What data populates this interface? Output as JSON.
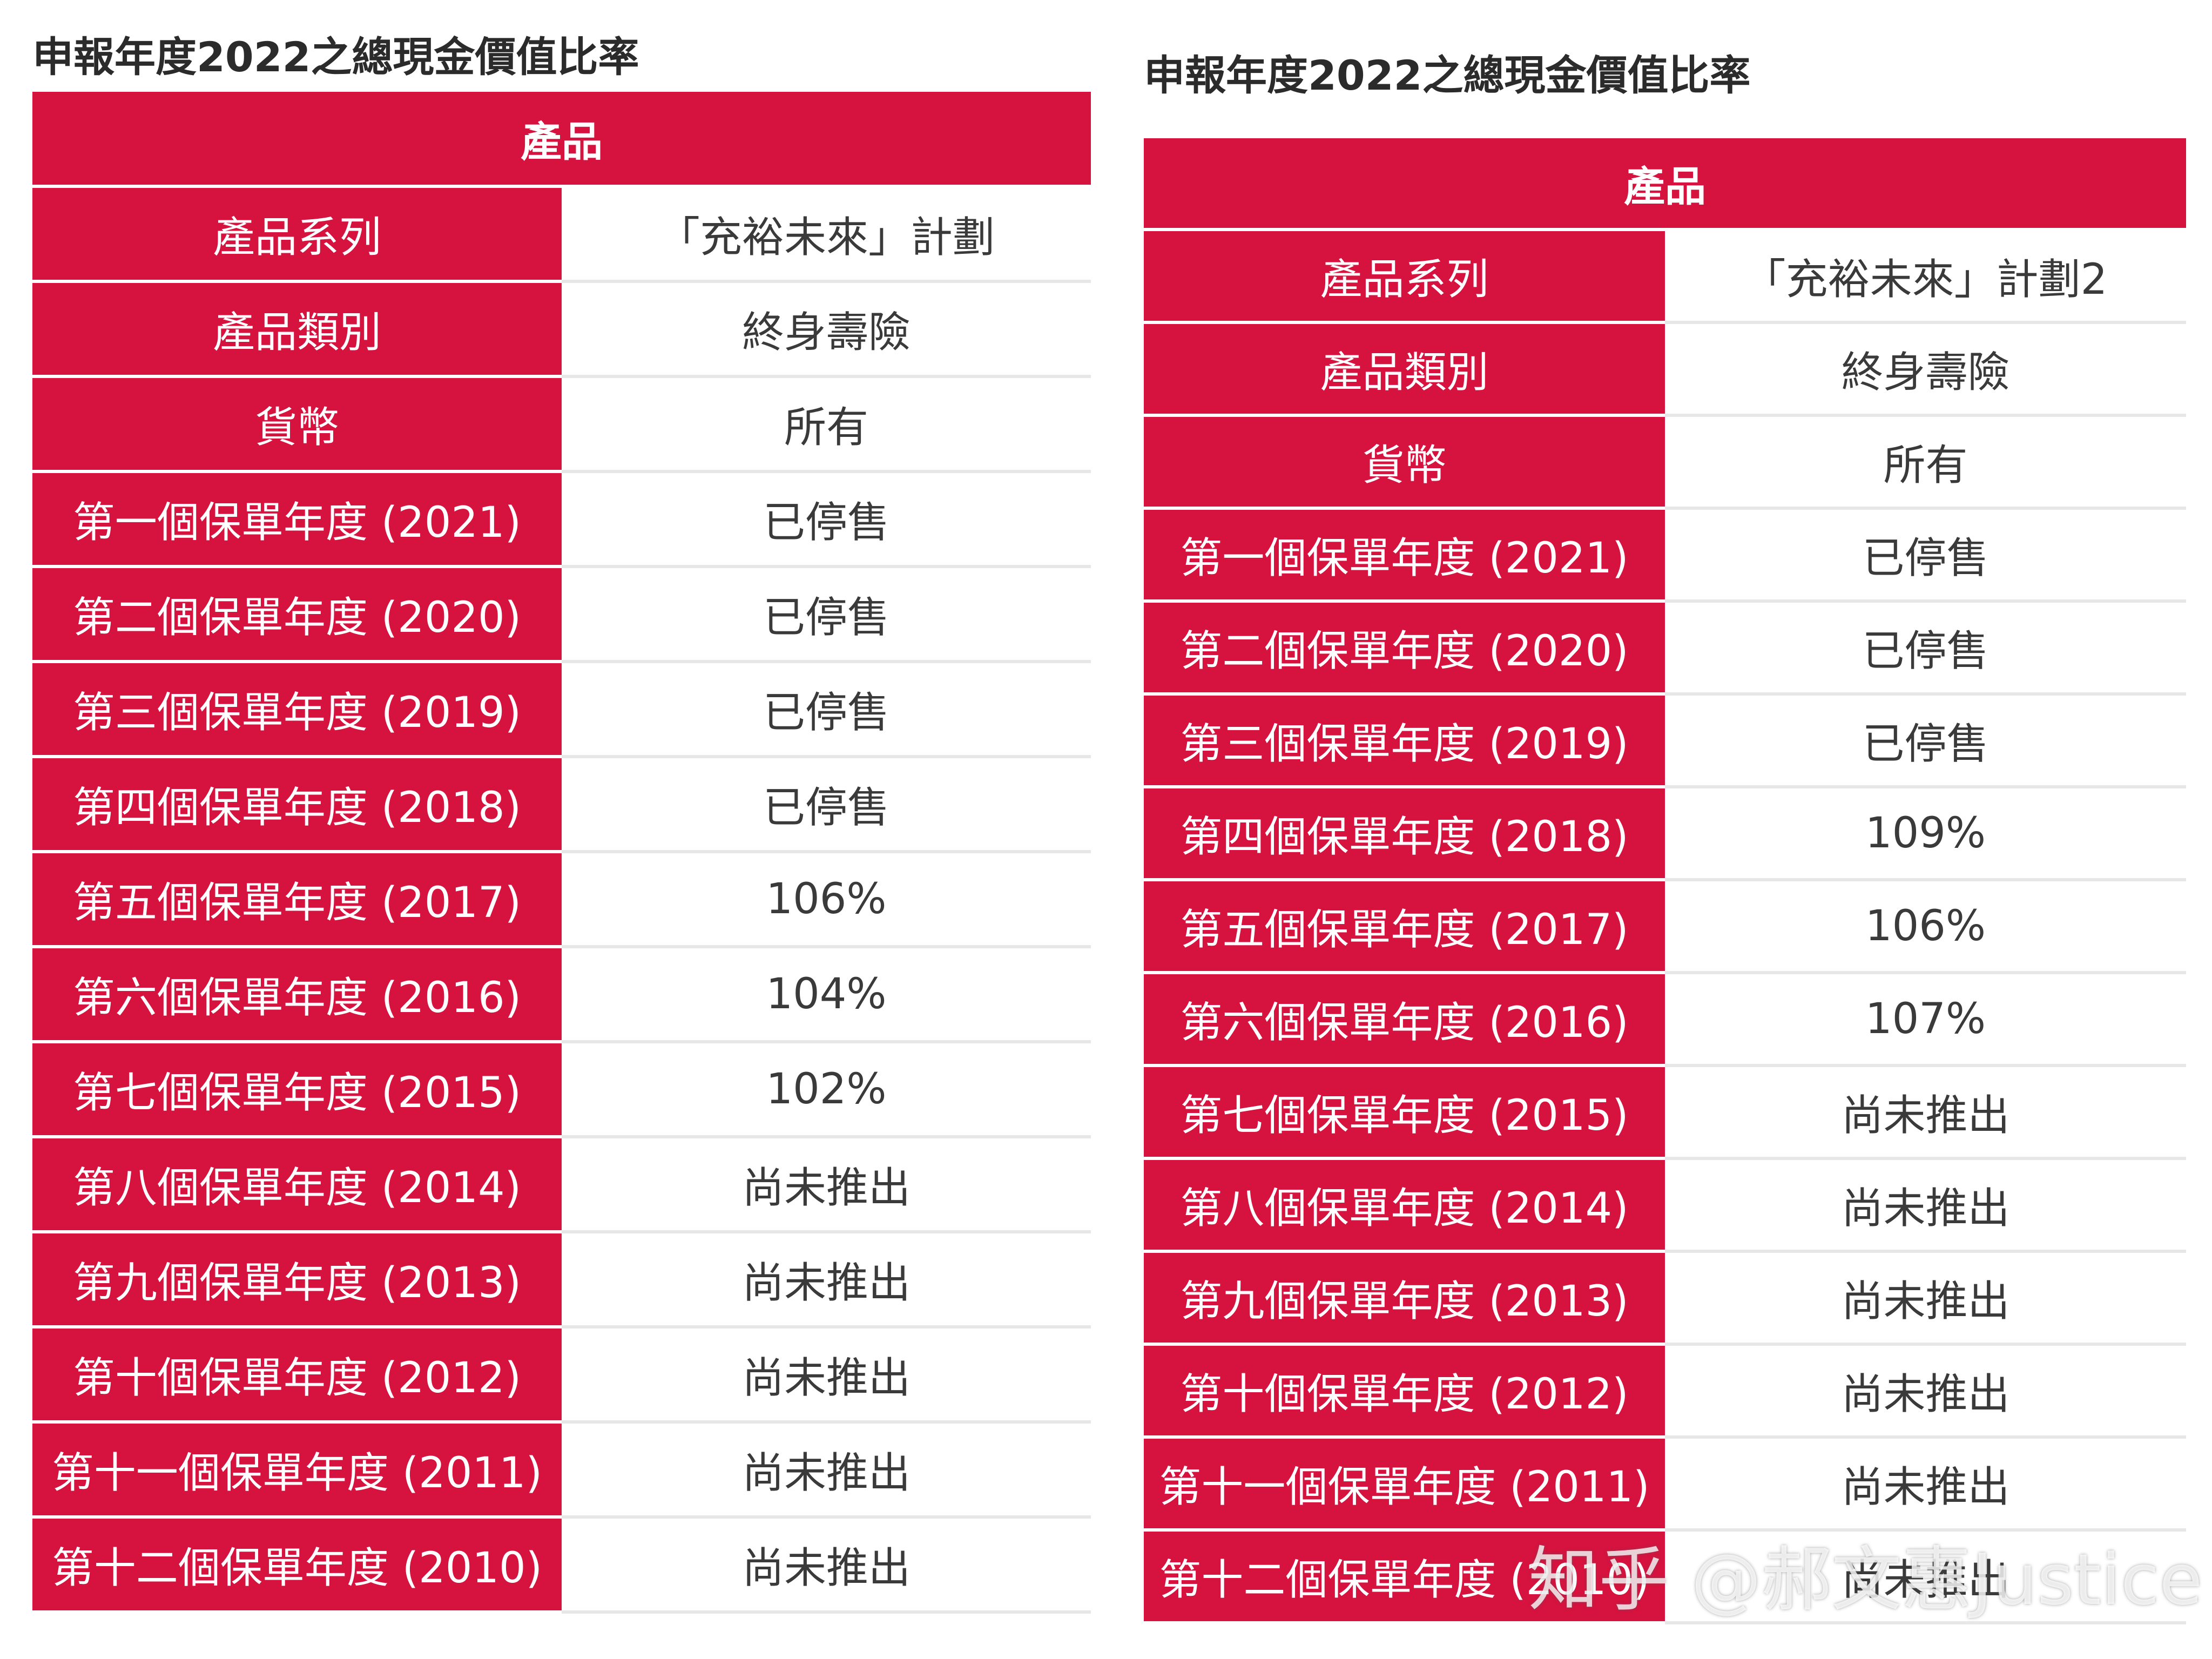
{
  "tables": [
    {
      "title": "申報年度2022之總現金價值比率",
      "header": "產品",
      "rows": [
        {
          "label": "產品系列",
          "value": "「充裕未來」計劃"
        },
        {
          "label": "產品類別",
          "value": "終身壽險"
        },
        {
          "label": "貨幣",
          "value": "所有"
        },
        {
          "label": "第一個保單年度 (2021)",
          "value": "已停售"
        },
        {
          "label": "第二個保單年度 (2020)",
          "value": "已停售"
        },
        {
          "label": "第三個保單年度 (2019)",
          "value": "已停售"
        },
        {
          "label": "第四個保單年度 (2018)",
          "value": "已停售"
        },
        {
          "label": "第五個保單年度 (2017)",
          "value": "106%"
        },
        {
          "label": "第六個保單年度 (2016)",
          "value": "104%"
        },
        {
          "label": "第七個保單年度 (2015)",
          "value": "102%"
        },
        {
          "label": "第八個保單年度 (2014)",
          "value": "尚未推出"
        },
        {
          "label": "第九個保單年度 (2013)",
          "value": "尚未推出"
        },
        {
          "label": "第十個保單年度 (2012)",
          "value": "尚未推出"
        },
        {
          "label": "第十一個保單年度 (2011)",
          "value": "尚未推出"
        },
        {
          "label": "第十二個保單年度 (2010)",
          "value": "尚未推出"
        }
      ]
    },
    {
      "title": "申報年度2022之總現金價值比率",
      "header": "產品",
      "rows": [
        {
          "label": "產品系列",
          "value": "「充裕未來」計劃2"
        },
        {
          "label": "產品類別",
          "value": "終身壽險"
        },
        {
          "label": "貨幣",
          "value": "所有"
        },
        {
          "label": "第一個保單年度 (2021)",
          "value": "已停售"
        },
        {
          "label": "第二個保單年度 (2020)",
          "value": "已停售"
        },
        {
          "label": "第三個保單年度 (2019)",
          "value": "已停售"
        },
        {
          "label": "第四個保單年度 (2018)",
          "value": "109%"
        },
        {
          "label": "第五個保單年度 (2017)",
          "value": "106%"
        },
        {
          "label": "第六個保單年度 (2016)",
          "value": "107%"
        },
        {
          "label": "第七個保單年度 (2015)",
          "value": "尚未推出"
        },
        {
          "label": "第八個保單年度 (2014)",
          "value": "尚未推出"
        },
        {
          "label": "第九個保單年度 (2013)",
          "value": "尚未推出"
        },
        {
          "label": "第十個保單年度 (2012)",
          "value": "尚未推出"
        },
        {
          "label": "第十一個保單年度 (2011)",
          "value": "尚未推出"
        },
        {
          "label": "第十二個保單年度 (2010)",
          "value": "尚未推出"
        }
      ]
    }
  ],
  "watermark": "知乎 @郝文惠Justice",
  "colors": {
    "accent": "#d6123f",
    "label_text": "#ffffff",
    "value_text": "#3a3a3a"
  }
}
